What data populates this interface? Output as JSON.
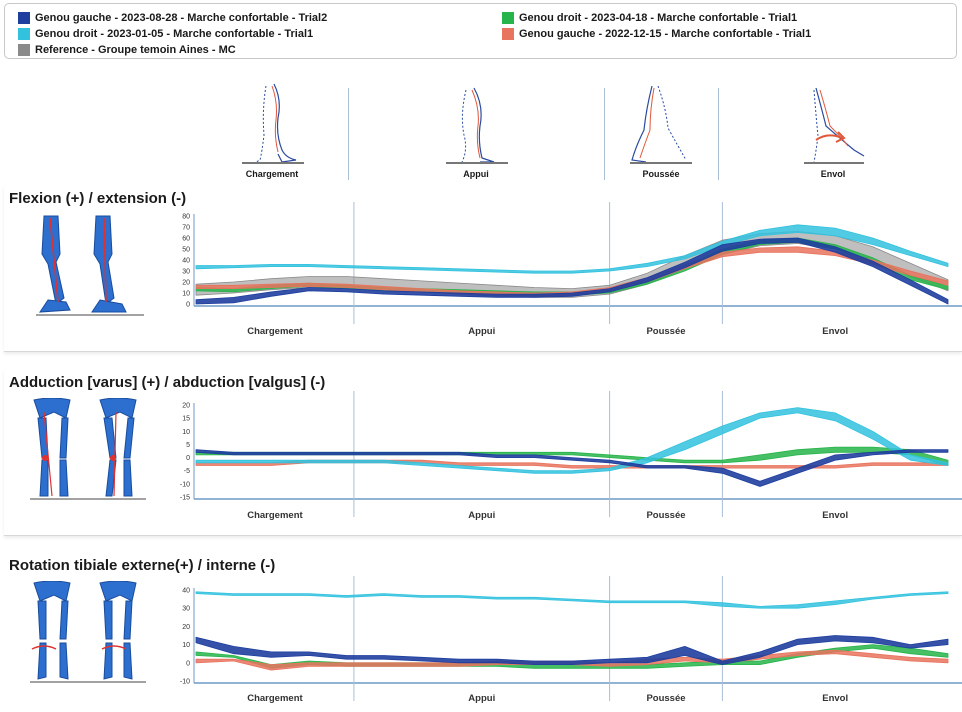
{
  "legend": {
    "items": [
      {
        "label": "Genou gauche - 2023-08-28 - Marche confortable - Trial2",
        "color": "#1f3f9f"
      },
      {
        "label": "Genou droit - 2023-01-05 - Marche confortable - Trial1",
        "color": "#33c2de"
      },
      {
        "label": "Reference - Groupe temoin Aines - MC",
        "color": "#8a8a8a"
      },
      {
        "label": "Genou droit - 2023-04-18 - Marche confortable - Trial1",
        "color": "#27b44a"
      },
      {
        "label": "Genou gauche - 2022-12-15 - Marche confortable - Trial1",
        "color": "#e8735e"
      }
    ]
  },
  "phases": [
    "Chargement",
    "Appui",
    "Poussée",
    "Envol"
  ],
  "panels": [
    {
      "title": "Flexion (+) / extension (-)"
    },
    {
      "title": "Adduction [varus] (+) / abduction [valgus] (-)"
    },
    {
      "title": "Rotation tibiale externe(+) / interne (-)"
    }
  ],
  "chart_data": [
    {
      "type": "area",
      "title": "Flexion (+) / extension (-)",
      "x_range": [
        0,
        100
      ],
      "ylim": [
        0,
        80
      ],
      "yticks": [
        0,
        10,
        20,
        30,
        40,
        50,
        60,
        70,
        80
      ],
      "phase_boundaries": [
        21,
        55,
        70
      ],
      "series": [
        {
          "name": "Reference - Groupe temoin Aines - MC",
          "color": "#8a8a8a",
          "opacity": 0.55,
          "x": [
            0,
            5,
            10,
            15,
            20,
            25,
            30,
            35,
            40,
            45,
            50,
            55,
            60,
            65,
            70,
            75,
            80,
            85,
            90,
            95,
            100
          ],
          "lower": [
            8,
            10,
            13,
            15,
            15,
            13,
            11,
            9,
            7,
            6,
            6,
            9,
            18,
            32,
            45,
            53,
            55,
            50,
            40,
            25,
            12
          ],
          "upper": [
            18,
            20,
            23,
            25,
            25,
            23,
            21,
            19,
            17,
            15,
            14,
            17,
            28,
            44,
            58,
            64,
            66,
            62,
            52,
            37,
            22
          ]
        },
        {
          "name": "Genou droit - 2023-01-05 - Marche confortable - Trial1",
          "color": "#33c2de",
          "opacity": 0.85,
          "x": [
            0,
            5,
            10,
            15,
            20,
            25,
            30,
            35,
            40,
            45,
            50,
            55,
            60,
            65,
            70,
            75,
            80,
            85,
            90,
            95,
            100
          ],
          "lower": [
            32,
            33,
            34,
            34,
            33,
            32,
            31,
            30,
            29,
            28,
            28,
            30,
            34,
            41,
            53,
            62,
            65,
            62,
            54,
            44,
            34
          ],
          "upper": [
            35,
            35,
            36,
            36,
            35,
            34,
            33,
            32,
            31,
            30,
            30,
            32,
            37,
            44,
            57,
            67,
            72,
            69,
            60,
            48,
            37
          ]
        },
        {
          "name": "Genou droit - 2023-04-18 - Marche confortable - Trial1",
          "color": "#27b44a",
          "opacity": 0.85,
          "x": [
            0,
            5,
            10,
            15,
            20,
            25,
            30,
            35,
            40,
            45,
            50,
            55,
            60,
            65,
            70,
            75,
            80,
            85,
            90,
            95,
            100
          ],
          "lower": [
            12,
            11,
            14,
            16,
            14,
            12,
            11,
            10,
            9,
            8,
            8,
            10,
            18,
            30,
            45,
            54,
            56,
            50,
            38,
            22,
            13
          ],
          "upper": [
            15,
            14,
            17,
            19,
            17,
            15,
            14,
            13,
            12,
            11,
            11,
            13,
            21,
            34,
            50,
            58,
            60,
            54,
            42,
            26,
            16
          ]
        },
        {
          "name": "Genou gauche - 2022-12-15 - Marche confortable - Trial1",
          "color": "#e8735e",
          "opacity": 0.85,
          "x": [
            0,
            5,
            10,
            15,
            20,
            25,
            30,
            35,
            40,
            45,
            50,
            55,
            60,
            65,
            70,
            75,
            80,
            85,
            90,
            95,
            100
          ],
          "lower": [
            14,
            14,
            15,
            16,
            15,
            13,
            11,
            9,
            8,
            7,
            8,
            12,
            20,
            32,
            43,
            47,
            47,
            44,
            36,
            26,
            17
          ],
          "upper": [
            17,
            17,
            18,
            19,
            18,
            16,
            14,
            12,
            11,
            10,
            11,
            15,
            24,
            36,
            47,
            51,
            52,
            48,
            40,
            30,
            21
          ]
        },
        {
          "name": "Genou gauche - 2023-08-28 - Marche confortable - Trial2",
          "color": "#1f3f9f",
          "opacity": 0.9,
          "x": [
            0,
            5,
            10,
            15,
            20,
            25,
            30,
            35,
            40,
            45,
            50,
            55,
            60,
            65,
            70,
            75,
            80,
            85,
            90,
            95,
            100
          ],
          "lower": [
            0,
            1,
            7,
            12,
            11,
            9,
            8,
            7,
            6,
            6,
            7,
            11,
            20,
            33,
            48,
            55,
            56,
            47,
            34,
            17,
            0
          ],
          "upper": [
            4,
            6,
            11,
            15,
            14,
            12,
            11,
            10,
            9,
            9,
            10,
            14,
            24,
            38,
            54,
            59,
            60,
            52,
            39,
            22,
            4
          ]
        }
      ]
    },
    {
      "type": "area",
      "title": "Adduction [varus] (+) / abduction [valgus] (-)",
      "x_range": [
        0,
        100
      ],
      "ylim": [
        -15,
        20
      ],
      "yticks": [
        -15,
        -10,
        -5,
        0,
        5,
        10,
        15,
        20
      ],
      "phase_boundaries": [
        21,
        55,
        70
      ],
      "series": [
        {
          "name": "Genou gauche - 2022-12-15 - Marche confortable - Trial1",
          "color": "#e8735e",
          "opacity": 0.85,
          "x": [
            0,
            5,
            10,
            15,
            20,
            25,
            30,
            35,
            40,
            45,
            50,
            55,
            60,
            65,
            70,
            75,
            80,
            85,
            90,
            95,
            100
          ],
          "lower": [
            -3,
            -3,
            -3,
            -2,
            -2,
            -2,
            -2,
            -3,
            -3,
            -3,
            -4,
            -4,
            -4,
            -4,
            -4,
            -4,
            -4,
            -4,
            -3,
            -3,
            -3
          ],
          "upper": [
            -2,
            -2,
            -2,
            -1,
            -1,
            -1,
            -1,
            -2,
            -2,
            -2,
            -3,
            -3,
            -3,
            -3,
            -3,
            -3,
            -3,
            -3,
            -2,
            -2,
            -2
          ]
        },
        {
          "name": "Genou droit - 2023-04-18 - Marche confortable - Trial1",
          "color": "#27b44a",
          "opacity": 0.85,
          "x": [
            0,
            5,
            10,
            15,
            20,
            25,
            30,
            35,
            40,
            45,
            50,
            55,
            60,
            65,
            70,
            75,
            80,
            85,
            90,
            95,
            100
          ],
          "lower": [
            1,
            1,
            1,
            1,
            1,
            1,
            1,
            1,
            1,
            1,
            1,
            0,
            -1,
            -2,
            -2,
            -1,
            1,
            2,
            2,
            1,
            -3
          ],
          "upper": [
            2,
            2,
            2,
            2,
            2,
            2,
            2,
            2,
            2,
            2,
            2,
            1,
            0,
            -1,
            -1,
            1,
            3,
            4,
            4,
            3,
            -1
          ]
        },
        {
          "name": "Genou droit - 2023-01-05 - Marche confortable - Trial1",
          "color": "#33c2de",
          "opacity": 0.85,
          "x": [
            0,
            5,
            10,
            15,
            20,
            25,
            30,
            35,
            40,
            45,
            50,
            55,
            60,
            65,
            70,
            75,
            80,
            85,
            90,
            95,
            100
          ],
          "lower": [
            -2,
            -2,
            -2,
            -2,
            -2,
            -2,
            -3,
            -4,
            -5,
            -6,
            -6,
            -5,
            -2,
            3,
            9,
            15,
            17,
            14,
            7,
            -1,
            -3
          ],
          "upper": [
            -1,
            -1,
            -1,
            -1,
            -1,
            -1,
            -2,
            -3,
            -4,
            -5,
            -5,
            -4,
            0,
            6,
            12,
            17,
            19,
            17,
            10,
            1,
            -2
          ]
        },
        {
          "name": "Genou gauche - 2023-08-28 - Marche confortable - Trial2",
          "color": "#1f3f9f",
          "opacity": 0.9,
          "x": [
            0,
            5,
            10,
            15,
            20,
            25,
            30,
            35,
            40,
            45,
            50,
            55,
            60,
            65,
            70,
            75,
            80,
            85,
            90,
            95,
            100
          ],
          "lower": [
            2,
            1,
            1,
            1,
            1,
            1,
            1,
            1,
            0,
            0,
            -1,
            -2,
            -4,
            -4,
            -6,
            -11,
            -6,
            -1,
            1,
            2,
            2
          ],
          "upper": [
            3,
            2,
            2,
            2,
            2,
            2,
            2,
            2,
            1,
            1,
            0,
            -1,
            -3,
            -3,
            -4,
            -9,
            -4,
            1,
            2,
            3,
            3
          ]
        }
      ]
    },
    {
      "type": "area",
      "title": "Rotation tibiale externe(+) / interne (-)",
      "x_range": [
        0,
        100
      ],
      "ylim": [
        -10,
        40
      ],
      "yticks": [
        -10,
        0,
        10,
        20,
        30,
        40
      ],
      "phase_boundaries": [
        21,
        55,
        70
      ],
      "series": [
        {
          "name": "Genou droit - 2023-01-05 - Marche confortable - Trial1",
          "color": "#33c2de",
          "opacity": 0.85,
          "x": [
            0,
            5,
            10,
            15,
            20,
            25,
            30,
            35,
            40,
            45,
            50,
            55,
            60,
            65,
            70,
            75,
            80,
            85,
            90,
            95,
            100
          ],
          "lower": [
            38,
            37,
            37,
            37,
            36,
            37,
            36,
            36,
            35,
            35,
            34,
            33,
            33,
            33,
            31,
            30,
            30,
            32,
            35,
            37,
            38
          ],
          "upper": [
            39,
            38,
            38,
            38,
            37,
            38,
            37,
            37,
            36,
            36,
            35,
            34,
            34,
            34,
            33,
            31,
            32,
            34,
            36,
            38,
            39
          ]
        },
        {
          "name": "Genou droit - 2023-04-18 - Marche confortable - Trial1",
          "color": "#27b44a",
          "opacity": 0.85,
          "x": [
            0,
            5,
            10,
            15,
            20,
            25,
            30,
            35,
            40,
            45,
            50,
            55,
            60,
            65,
            70,
            75,
            80,
            85,
            90,
            95,
            100
          ],
          "lower": [
            4,
            3,
            -3,
            -1,
            -2,
            -2,
            -2,
            -2,
            -2,
            -3,
            -3,
            -3,
            -3,
            -2,
            -1,
            -1,
            3,
            6,
            8,
            5,
            3
          ],
          "upper": [
            6,
            4,
            -1,
            1,
            0,
            0,
            0,
            0,
            0,
            -1,
            -1,
            -1,
            -1,
            0,
            1,
            1,
            5,
            8,
            10,
            8,
            5
          ]
        },
        {
          "name": "Genou gauche - 2022-12-15 - Marche confortable - Trial1",
          "color": "#e8735e",
          "opacity": 0.85,
          "x": [
            0,
            5,
            10,
            15,
            20,
            25,
            30,
            35,
            40,
            45,
            50,
            55,
            60,
            65,
            70,
            75,
            80,
            85,
            90,
            95,
            100
          ],
          "lower": [
            0,
            1,
            -4,
            -2,
            -2,
            -2,
            -2,
            -2,
            -1,
            -1,
            -1,
            -2,
            -1,
            1,
            0,
            2,
            4,
            5,
            3,
            1,
            0
          ],
          "upper": [
            2,
            2,
            -1,
            0,
            0,
            0,
            0,
            0,
            1,
            1,
            1,
            0,
            2,
            3,
            2,
            4,
            6,
            7,
            5,
            3,
            2
          ]
        },
        {
          "name": "Genou gauche - 2023-08-28 - Marche confortable - Trial2",
          "color": "#1f3f9f",
          "opacity": 0.9,
          "x": [
            0,
            5,
            10,
            15,
            20,
            25,
            30,
            35,
            40,
            45,
            50,
            55,
            60,
            65,
            70,
            75,
            80,
            85,
            90,
            95,
            100
          ],
          "lower": [
            11,
            5,
            3,
            4,
            2,
            2,
            1,
            0,
            0,
            -1,
            -1,
            0,
            0,
            4,
            -1,
            3,
            10,
            12,
            11,
            8,
            10
          ],
          "upper": [
            14,
            9,
            6,
            6,
            4,
            4,
            3,
            2,
            2,
            1,
            1,
            2,
            3,
            9,
            1,
            6,
            13,
            15,
            14,
            10,
            13
          ]
        }
      ]
    }
  ]
}
